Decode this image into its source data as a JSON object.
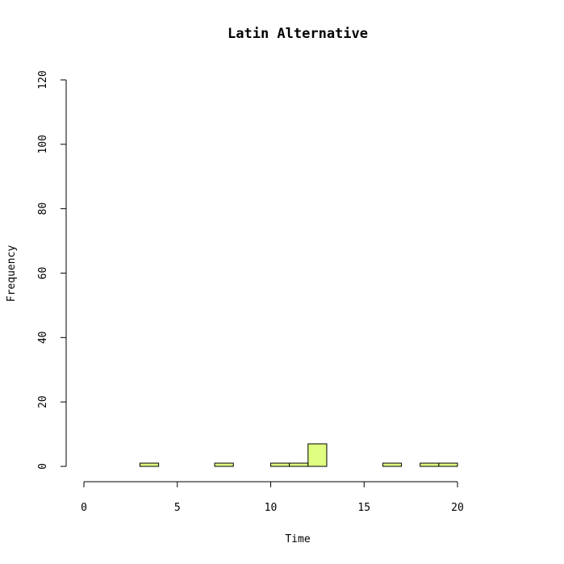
{
  "chart_data": {
    "type": "bar",
    "title": "Latin Alternative",
    "xlabel": "Time",
    "ylabel": "Frequency",
    "xlim": [
      0,
      24
    ],
    "ylim": [
      0,
      120
    ],
    "x_ticks": [
      0,
      5,
      10,
      15,
      20
    ],
    "y_ticks": [
      0,
      20,
      40,
      60,
      80,
      100,
      120
    ],
    "bin_width": 1,
    "bins": [
      {
        "start": 0,
        "end": 1,
        "count": 0
      },
      {
        "start": 1,
        "end": 2,
        "count": 0
      },
      {
        "start": 2,
        "end": 3,
        "count": 0
      },
      {
        "start": 3,
        "end": 4,
        "count": 1
      },
      {
        "start": 4,
        "end": 5,
        "count": 0
      },
      {
        "start": 5,
        "end": 6,
        "count": 0
      },
      {
        "start": 6,
        "end": 7,
        "count": 0
      },
      {
        "start": 7,
        "end": 8,
        "count": 1
      },
      {
        "start": 8,
        "end": 9,
        "count": 0
      },
      {
        "start": 9,
        "end": 10,
        "count": 0
      },
      {
        "start": 10,
        "end": 11,
        "count": 1
      },
      {
        "start": 11,
        "end": 12,
        "count": 1
      },
      {
        "start": 12,
        "end": 13,
        "count": 7
      },
      {
        "start": 13,
        "end": 14,
        "count": 0
      },
      {
        "start": 14,
        "end": 15,
        "count": 0
      },
      {
        "start": 15,
        "end": 16,
        "count": 0
      },
      {
        "start": 16,
        "end": 17,
        "count": 1
      },
      {
        "start": 17,
        "end": 18,
        "count": 0
      },
      {
        "start": 18,
        "end": 19,
        "count": 1
      },
      {
        "start": 19,
        "end": 20,
        "count": 1
      },
      {
        "start": 20,
        "end": 21,
        "count": 0
      },
      {
        "start": 21,
        "end": 22,
        "count": 0
      },
      {
        "start": 22,
        "end": 23,
        "count": 0
      },
      {
        "start": 23,
        "end": 24,
        "count": 0
      }
    ],
    "bar_color": "#e0ff80",
    "grid": false
  }
}
